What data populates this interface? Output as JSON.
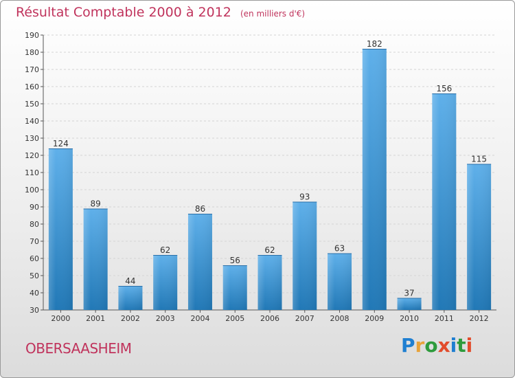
{
  "title": "Résultat Comptable 2000 à 2012",
  "subtitle": "(en milliers d'€)",
  "commune": "OBERSAASHEIM",
  "logo": {
    "text": "Proxiti",
    "colors": [
      "#1f7fd1",
      "#e8a33a",
      "#2e9b3c",
      "#e24c2c",
      "#1f7fd1",
      "#2e9b3c",
      "#e24c2c"
    ]
  },
  "colors": {
    "bar_light": "#5fb0ea",
    "bar_dark": "#2178b6",
    "title": "#c0335c"
  },
  "chart_data": {
    "type": "bar",
    "categories": [
      "2000",
      "2001",
      "2002",
      "2003",
      "2004",
      "2005",
      "2006",
      "2007",
      "2008",
      "2009",
      "2010",
      "2011",
      "2012"
    ],
    "values": [
      124,
      89,
      44,
      62,
      86,
      56,
      62,
      93,
      63,
      182,
      37,
      156,
      115
    ],
    "ylim": [
      30,
      190
    ],
    "yticks": [
      30,
      40,
      50,
      60,
      70,
      80,
      90,
      100,
      110,
      120,
      130,
      140,
      150,
      160,
      170,
      180,
      190
    ],
    "grid": true,
    "xlabel": "",
    "ylabel": ""
  }
}
